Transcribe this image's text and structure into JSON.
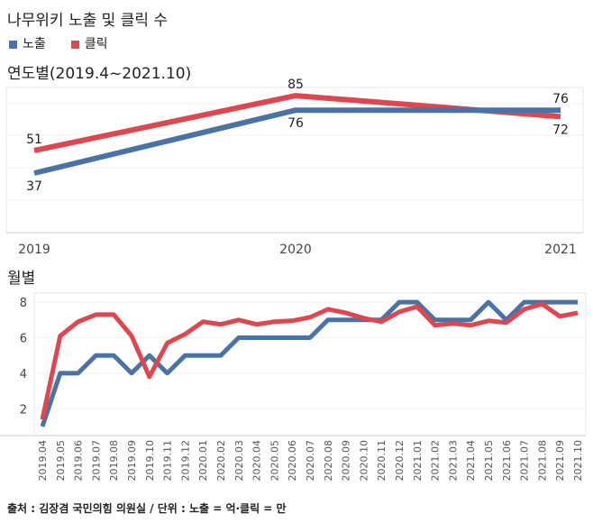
{
  "title": "나무위키 노출 및 클릭 수",
  "legend": [
    {
      "name": "노출",
      "color": "#4a72a4"
    },
    {
      "name": "클릭",
      "color": "#e0464f"
    }
  ],
  "footer": "출처 : 김장겸 국민의힘 의원실 / 단위 : 노출 = 억·클릭 = 만",
  "chart_data": [
    {
      "type": "line",
      "title": "연도별(2019.4~2021.10)",
      "categories": [
        "2019",
        "2020",
        "2021"
      ],
      "series": [
        {
          "name": "노출",
          "color": "#4a72a4",
          "values": [
            37,
            76,
            76
          ]
        },
        {
          "name": "클릭",
          "color": "#e0464f",
          "values": [
            51,
            85,
            72
          ]
        }
      ],
      "data_labels": true,
      "grid": true
    },
    {
      "type": "line",
      "title": "월별",
      "categories": [
        "2019.04",
        "2019.05",
        "2019.06",
        "2019.07",
        "2019.08",
        "2019.09",
        "2019.10",
        "2019.11",
        "2019.12",
        "2020.01",
        "2020.02",
        "2020.03",
        "2020.04",
        "2020.05",
        "2020.06",
        "2020.07",
        "2020.08",
        "2020.09",
        "2020.10",
        "2020.11",
        "2020.12",
        "2021.01",
        "2021.02",
        "2021.03",
        "2021.04",
        "2021.05",
        "2021.06",
        "2021.07",
        "2021.08",
        "2021.09",
        "2021.10"
      ],
      "yticks": [
        2,
        4,
        6,
        8
      ],
      "ylim": [
        0.5,
        8.4
      ],
      "series": [
        {
          "name": "노출",
          "color": "#4a72a4",
          "values": [
            1,
            4,
            4,
            5,
            5,
            4,
            5,
            4,
            5,
            5,
            5,
            6,
            6,
            6,
            6,
            6,
            7,
            7,
            7,
            7,
            8,
            8,
            7,
            7,
            7,
            8,
            7,
            8,
            8,
            8,
            8
          ]
        },
        {
          "name": "클릭",
          "color": "#e0464f",
          "values": [
            1.4,
            6.1,
            6.9,
            7.3,
            7.3,
            6.1,
            3.8,
            5.7,
            6.2,
            6.9,
            6.75,
            7.0,
            6.75,
            6.9,
            6.95,
            7.15,
            7.6,
            7.4,
            7.1,
            6.9,
            7.45,
            7.75,
            6.7,
            6.8,
            6.7,
            6.95,
            6.85,
            7.6,
            7.9,
            7.2,
            7.4
          ]
        }
      ],
      "grid": true
    }
  ]
}
